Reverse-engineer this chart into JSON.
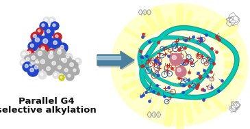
{
  "bg_color": "#ffffff",
  "title_line1": "Parallel G4",
  "title_line2": "selective alkylation",
  "text_color": "#111111",
  "arrow_color_light": "#a8ccd8",
  "arrow_color_dark": "#4a7fa0",
  "quad_ribbon_color": "#00ccbb",
  "glow_rays_color": "#ffff88",
  "glow_bg_color": "#ffffcc",
  "mol_blue": "#2244cc",
  "mol_red": "#cc2222",
  "mol_gray": "#aaaaaa",
  "mol_white": "#e0e0e0",
  "mol_dark_gray": "#777777",
  "pink_sphere": "#cc7788",
  "figsize": [
    3.65,
    1.89
  ],
  "dpi": 100
}
